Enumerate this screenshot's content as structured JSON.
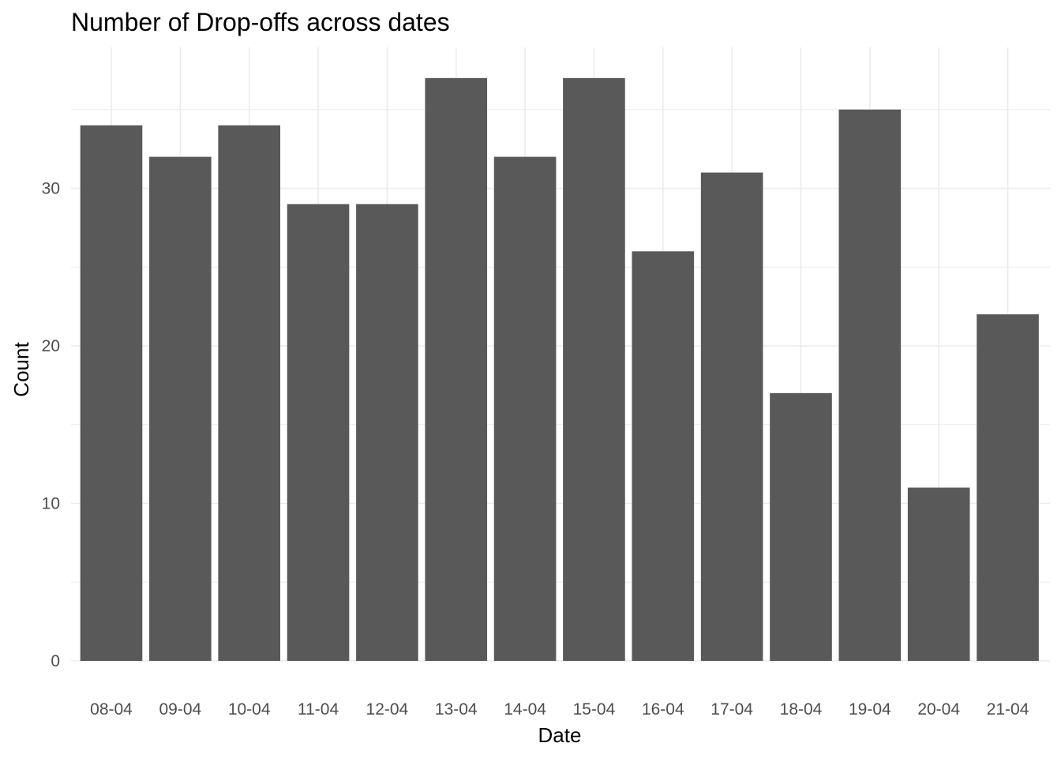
{
  "chart_data": {
    "type": "bar",
    "title": "Number of Drop-offs across dates",
    "xlabel": "Date",
    "ylabel": "Count",
    "categories": [
      "08-04",
      "09-04",
      "10-04",
      "11-04",
      "12-04",
      "13-04",
      "14-04",
      "15-04",
      "16-04",
      "17-04",
      "18-04",
      "19-04",
      "20-04",
      "21-04"
    ],
    "values": [
      34,
      32,
      34,
      29,
      29,
      37,
      32,
      37,
      26,
      31,
      17,
      35,
      11,
      22
    ],
    "ylim": [
      0,
      38.85
    ],
    "yticks": [
      0,
      10,
      20,
      30
    ],
    "grid": true,
    "legend": "none",
    "bar_color": "#595959",
    "grid_color": "#ebebeb"
  }
}
